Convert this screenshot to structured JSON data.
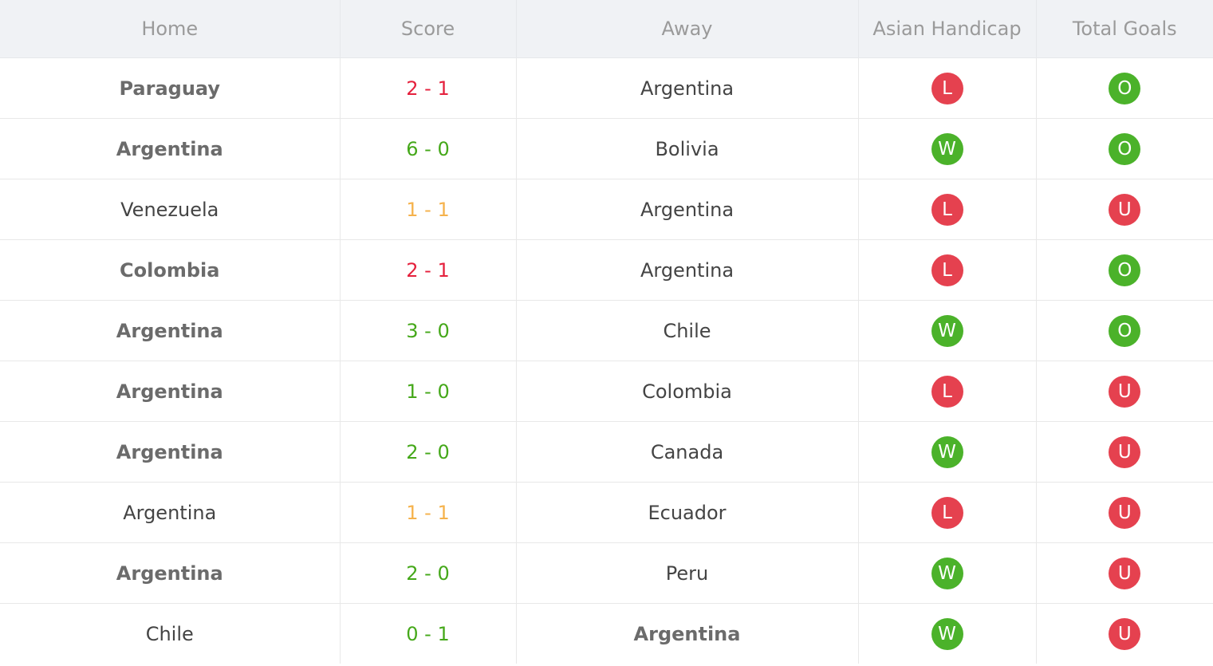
{
  "headers": {
    "home": "Home",
    "score": "Score",
    "away": "Away",
    "asian_handicap": "Asian Handicap",
    "total_goals": "Total Goals"
  },
  "colors": {
    "score_win": "#45a81a",
    "score_loss": "#e5213d",
    "score_draw": "#f5b24c",
    "badge_green": "#4bb22a",
    "badge_red": "#e5414f"
  },
  "rows": [
    {
      "home": "Paraguay",
      "score": "2 - 1",
      "away": "Argentina",
      "ah": "L",
      "tg": "O"
    },
    {
      "home": "Argentina",
      "score": "6 - 0",
      "away": "Bolivia",
      "ah": "W",
      "tg": "O"
    },
    {
      "home": "Venezuela",
      "score": "1 - 1",
      "away": "Argentina",
      "ah": "L",
      "tg": "U"
    },
    {
      "home": "Colombia",
      "score": "2 - 1",
      "away": "Argentina",
      "ah": "L",
      "tg": "O"
    },
    {
      "home": "Argentina",
      "score": "3 - 0",
      "away": "Chile",
      "ah": "W",
      "tg": "O"
    },
    {
      "home": "Argentina",
      "score": "1 - 0",
      "away": "Colombia",
      "ah": "L",
      "tg": "U"
    },
    {
      "home": "Argentina",
      "score": "2 - 0",
      "away": "Canada",
      "ah": "W",
      "tg": "U"
    },
    {
      "home": "Argentina",
      "score": "1 - 1",
      "away": "Ecuador",
      "ah": "L",
      "tg": "U"
    },
    {
      "home": "Argentina",
      "score": "2 - 0",
      "away": "Peru",
      "ah": "W",
      "tg": "U"
    },
    {
      "home": "Chile",
      "score": "0 - 1",
      "away": "Argentina",
      "ah": "W",
      "tg": "U"
    }
  ]
}
